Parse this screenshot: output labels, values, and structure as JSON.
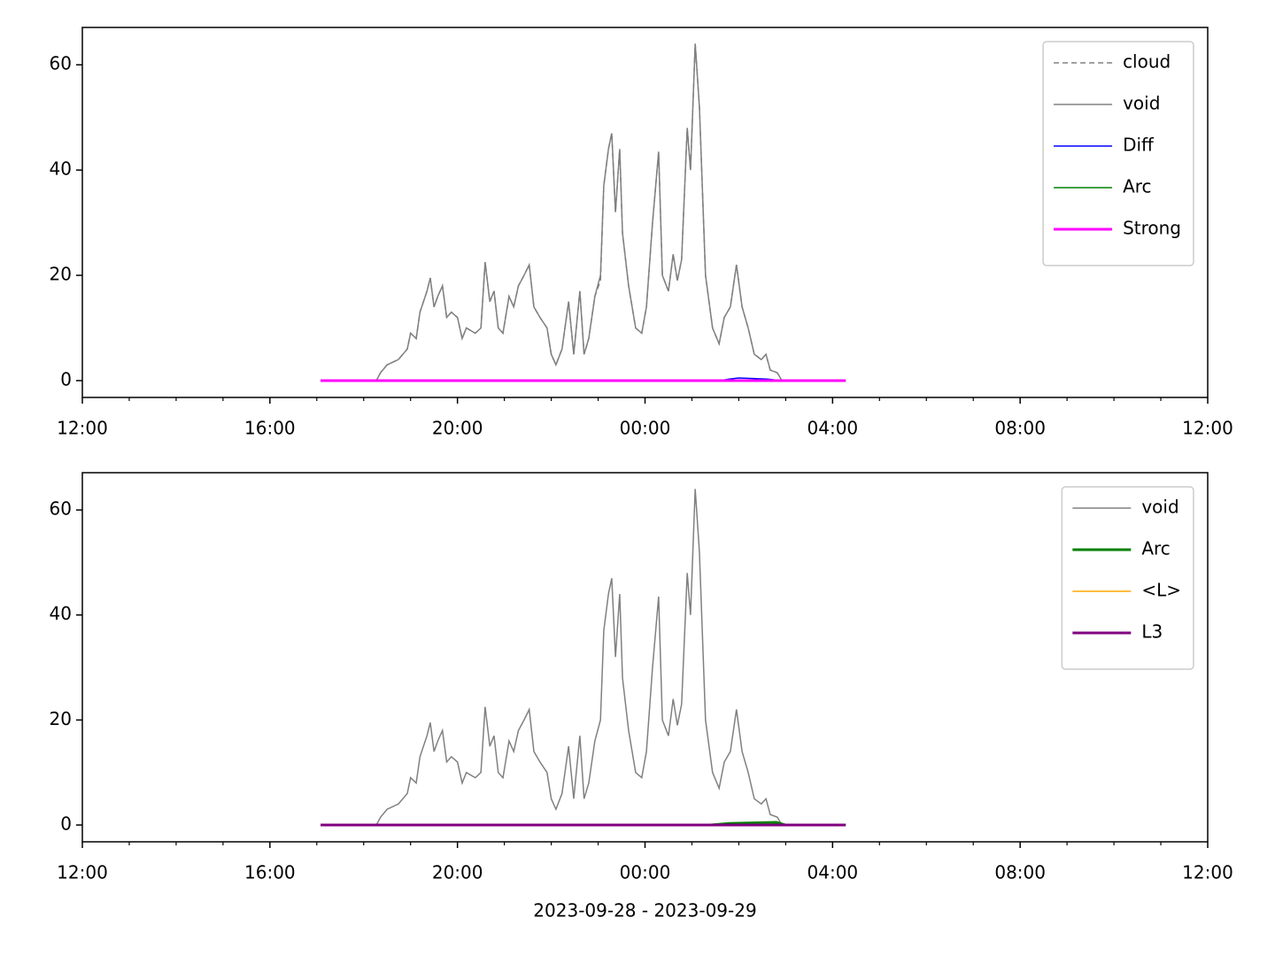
{
  "chart_data": [
    {
      "type": "line",
      "xlim": [
        12,
        36
      ],
      "ylim": [
        -3.2,
        67.1
      ],
      "xticks": [
        {
          "value": 12,
          "label": "12:00"
        },
        {
          "value": 16,
          "label": "16:00"
        },
        {
          "value": 20,
          "label": "20:00"
        },
        {
          "value": 24,
          "label": "00:00"
        },
        {
          "value": 28,
          "label": "04:00"
        },
        {
          "value": 32,
          "label": "08:00"
        },
        {
          "value": 36,
          "label": "12:00"
        }
      ],
      "xminorticks": [
        13,
        14,
        15,
        17,
        18,
        19,
        21,
        22,
        23,
        25,
        26,
        27,
        29,
        30,
        31,
        33,
        34,
        35
      ],
      "yticks": [
        0,
        20,
        40,
        60
      ],
      "legend": "upper right",
      "series": [
        {
          "name": "cloud",
          "color": "#808080",
          "linestyle": "dashed",
          "linewidth": 1.5,
          "x": [
            17.08,
            18.27,
            18.36,
            18.5,
            18.74,
            18.93,
            19.0,
            19.12,
            19.2,
            19.35,
            19.42,
            19.5,
            19.58,
            19.68,
            19.77,
            19.87,
            20.0,
            20.1,
            20.19,
            20.38,
            20.5,
            20.59,
            20.69,
            20.78,
            20.87,
            20.97,
            21.1,
            21.2,
            21.3,
            21.42,
            21.53,
            21.63,
            21.76,
            21.91,
            22.0,
            22.1,
            22.23,
            22.37,
            22.48,
            22.61,
            22.7,
            22.8,
            22.93,
            23.05,
            23.12,
            23.22,
            23.29,
            23.37,
            23.46,
            23.52,
            23.65,
            23.8,
            23.93,
            24.03,
            24.16,
            24.29,
            24.37,
            24.5,
            24.6,
            24.69,
            24.78,
            24.9,
            24.97,
            25.07,
            25.16,
            25.29,
            25.44,
            25.58,
            25.69,
            25.82,
            25.95,
            26.07,
            26.2,
            26.33,
            26.48,
            26.58,
            26.67,
            26.82,
            26.92,
            28.28
          ],
          "values": [
            0,
            0,
            1.5,
            3,
            4,
            6,
            9,
            8,
            13,
            17,
            19.5,
            14,
            16,
            18,
            12,
            13,
            12,
            8,
            10,
            9,
            10,
            22.5,
            15,
            17,
            10,
            9,
            16,
            14,
            18,
            20,
            22,
            14,
            12,
            10,
            5,
            3,
            6,
            15,
            5,
            17,
            5,
            8,
            16,
            19,
            37,
            44,
            47,
            32,
            44,
            28,
            18,
            10,
            9,
            14,
            30,
            43.5,
            20,
            17,
            24,
            19,
            23,
            48,
            40,
            64,
            52,
            20,
            10,
            7,
            12,
            14,
            22,
            14,
            10,
            5,
            4,
            5,
            2,
            1.5,
            0,
            0
          ]
        },
        {
          "name": "void",
          "color": "#808080",
          "linestyle": "solid",
          "linewidth": 1.5,
          "x": [
            17.08,
            18.27,
            18.36,
            18.5,
            18.74,
            18.93,
            19.0,
            19.12,
            19.2,
            19.35,
            19.42,
            19.5,
            19.58,
            19.68,
            19.77,
            19.87,
            20.0,
            20.1,
            20.19,
            20.38,
            20.5,
            20.59,
            20.69,
            20.78,
            20.87,
            20.97,
            21.1,
            21.2,
            21.3,
            21.42,
            21.53,
            21.63,
            21.76,
            21.91,
            22.0,
            22.1,
            22.23,
            22.37,
            22.48,
            22.61,
            22.7,
            22.8,
            22.93,
            23.05,
            23.12,
            23.22,
            23.29,
            23.37,
            23.46,
            23.52,
            23.65,
            23.8,
            23.93,
            24.03,
            24.16,
            24.29,
            24.37,
            24.5,
            24.6,
            24.69,
            24.78,
            24.9,
            24.97,
            25.07,
            25.16,
            25.29,
            25.44,
            25.58,
            25.69,
            25.82,
            25.95,
            26.07,
            26.2,
            26.33,
            26.48,
            26.58,
            26.67,
            26.82,
            26.92,
            28.28
          ],
          "values": [
            0,
            0,
            1.5,
            3,
            4,
            6,
            9,
            8,
            13,
            17,
            19.5,
            14,
            16,
            18,
            12,
            13,
            12,
            8,
            10,
            9,
            10,
            22.5,
            15,
            17,
            10,
            9,
            16,
            14,
            18,
            20,
            22,
            14,
            12,
            10,
            5,
            3,
            6,
            15,
            5,
            17,
            5,
            8,
            16,
            20,
            37,
            44,
            47,
            32,
            44,
            28,
            18,
            10,
            9,
            14,
            30,
            43.5,
            20,
            17,
            24,
            19,
            23,
            48,
            40,
            64,
            52,
            20,
            10,
            7,
            12,
            14,
            22,
            14,
            10,
            5,
            4,
            5,
            2,
            1.5,
            0,
            0
          ]
        },
        {
          "name": "Diff",
          "color": "#0000ff",
          "linestyle": "solid",
          "linewidth": 1.5,
          "x": [
            25.6,
            25.8,
            26.0,
            26.3,
            26.6,
            26.9
          ],
          "values": [
            0,
            0.3,
            0.5,
            0.4,
            0.3,
            0
          ]
        },
        {
          "name": "Arc",
          "color": "#008000",
          "linestyle": "solid",
          "linewidth": 1.5,
          "x": [
            17.08,
            28.28
          ],
          "values": [
            0,
            0
          ]
        },
        {
          "name": "Strong",
          "color": "#ff00ff",
          "linestyle": "solid",
          "linewidth": 3,
          "x": [
            17.08,
            28.28
          ],
          "values": [
            0,
            0
          ]
        }
      ]
    },
    {
      "type": "line",
      "xlim": [
        12,
        36
      ],
      "ylim": [
        -3.2,
        67.1
      ],
      "xticks": [
        {
          "value": 12,
          "label": "12:00"
        },
        {
          "value": 16,
          "label": "16:00"
        },
        {
          "value": 20,
          "label": "20:00"
        },
        {
          "value": 24,
          "label": "00:00"
        },
        {
          "value": 28,
          "label": "04:00"
        },
        {
          "value": 32,
          "label": "08:00"
        },
        {
          "value": 36,
          "label": "12:00"
        }
      ],
      "xminorticks": [
        13,
        14,
        15,
        17,
        18,
        19,
        21,
        22,
        23,
        25,
        26,
        27,
        29,
        30,
        31,
        33,
        34,
        35
      ],
      "yticks": [
        0,
        20,
        40,
        60
      ],
      "xlabel": "2023-09-28 - 2023-09-29",
      "legend": "upper right",
      "series": [
        {
          "name": "void",
          "color": "#808080",
          "linestyle": "solid",
          "linewidth": 1.5,
          "x": [
            17.08,
            18.27,
            18.36,
            18.5,
            18.74,
            18.93,
            19.0,
            19.12,
            19.2,
            19.35,
            19.42,
            19.5,
            19.58,
            19.68,
            19.77,
            19.87,
            20.0,
            20.1,
            20.19,
            20.38,
            20.5,
            20.59,
            20.69,
            20.78,
            20.87,
            20.97,
            21.1,
            21.2,
            21.3,
            21.42,
            21.53,
            21.63,
            21.76,
            21.91,
            22.0,
            22.1,
            22.23,
            22.37,
            22.48,
            22.61,
            22.7,
            22.8,
            22.93,
            23.05,
            23.12,
            23.22,
            23.29,
            23.37,
            23.46,
            23.52,
            23.65,
            23.8,
            23.93,
            24.03,
            24.16,
            24.29,
            24.37,
            24.5,
            24.6,
            24.69,
            24.78,
            24.9,
            24.97,
            25.07,
            25.16,
            25.29,
            25.44,
            25.58,
            25.69,
            25.82,
            25.95,
            26.07,
            26.2,
            26.33,
            26.48,
            26.58,
            26.67,
            26.82,
            26.92,
            28.28
          ],
          "values": [
            0,
            0,
            1.5,
            3,
            4,
            6,
            9,
            8,
            13,
            17,
            19.5,
            14,
            16,
            18,
            12,
            13,
            12,
            8,
            10,
            9,
            10,
            22.5,
            15,
            17,
            10,
            9,
            16,
            14,
            18,
            20,
            22,
            14,
            12,
            10,
            5,
            3,
            6,
            15,
            5,
            17,
            5,
            8,
            16,
            20,
            37,
            44,
            47,
            32,
            44,
            28,
            18,
            10,
            9,
            14,
            30,
            43.5,
            20,
            17,
            24,
            19,
            23,
            48,
            40,
            64,
            52,
            20,
            10,
            7,
            12,
            14,
            22,
            14,
            10,
            5,
            4,
            5,
            2,
            1.5,
            0,
            0
          ]
        },
        {
          "name": "Arc",
          "color": "#008000",
          "linestyle": "solid",
          "linewidth": 3,
          "x": [
            17.08,
            25.4,
            25.8,
            26.3,
            26.8,
            27.0,
            28.28
          ],
          "values": [
            0,
            0,
            0.3,
            0.4,
            0.5,
            0,
            0
          ]
        },
        {
          "name": "<L>",
          "color": "#ffa500",
          "linestyle": "solid",
          "linewidth": 1.5,
          "x": [
            17.08,
            28.28
          ],
          "values": [
            0,
            0
          ]
        },
        {
          "name": "L3",
          "color": "#800080",
          "linestyle": "solid",
          "linewidth": 3,
          "x": [
            17.08,
            28.28
          ],
          "values": [
            0,
            0
          ]
        }
      ]
    }
  ]
}
